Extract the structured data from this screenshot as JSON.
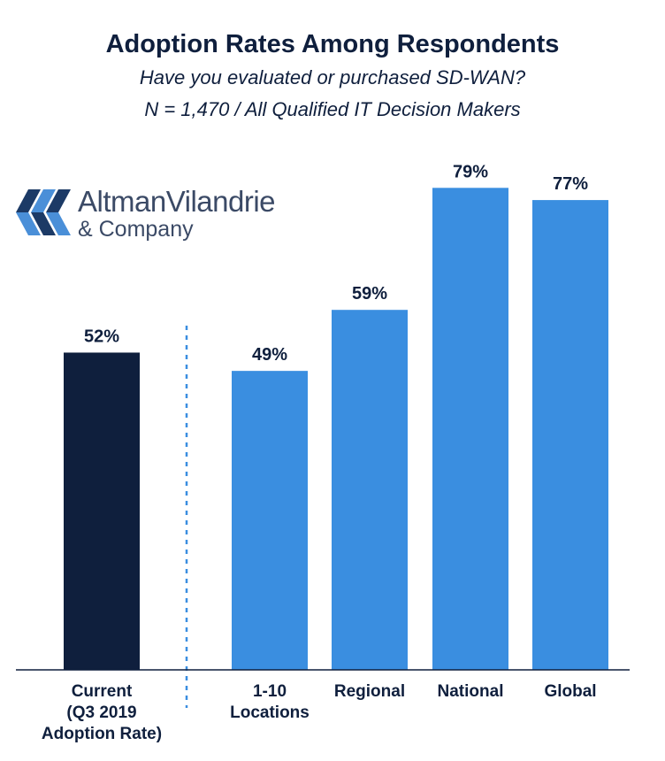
{
  "header": {
    "title": "Adoption Rates Among Respondents",
    "subtitle": "Have you evaluated or purchased SD-WAN?",
    "note": "N = 1,470 / All Qualified IT Decision Makers"
  },
  "logo": {
    "name": "AltmanVilandrie",
    "sub": "& Company",
    "icon": "altman-vilandrie-logo-mark"
  },
  "colors": {
    "current": "#0f1f3d",
    "segment": "#3a8ee0",
    "text": "#0f1f3d",
    "logo_dark": "#1c3a66",
    "logo_light": "#4a8fd8"
  },
  "chart_data": {
    "type": "bar",
    "title": "Adoption Rates Among Respondents",
    "subtitle": "Have you evaluated or purchased SD-WAN?",
    "categories": [
      [
        "Current",
        "(Q3 2019",
        "Adoption Rate)"
      ],
      [
        "1-10",
        "Locations"
      ],
      [
        "Regional"
      ],
      [
        "National"
      ],
      [
        "Global"
      ]
    ],
    "values": [
      52,
      49,
      59,
      79,
      77
    ],
    "value_labels": [
      "52%",
      "49%",
      "59%",
      "79%",
      "77%"
    ],
    "groups": [
      "current",
      "segment",
      "segment",
      "segment",
      "segment"
    ],
    "ylim": [
      0,
      100
    ],
    "grid": false,
    "separator_after_index": 0,
    "xlabel": "",
    "ylabel": ""
  }
}
